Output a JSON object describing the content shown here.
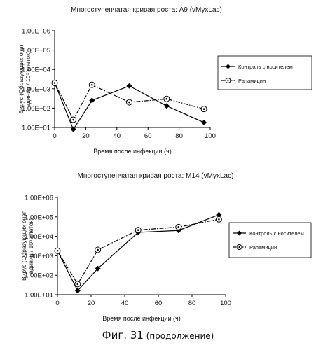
{
  "chart_data": [
    {
      "type": "line",
      "title": "Многоступенчатая кривая роста: A9 (vMyxLac)",
      "xlabel": "Время после инфекции (ч)",
      "ylabel_line1": "Вирус (Образующих очаг",
      "ylabel_line2": "единиц / 10⁵ клеток)",
      "y_scale": "log",
      "ylim": [
        10,
        1000000
      ],
      "xlim": [
        0,
        100
      ],
      "x_ticks": [
        0,
        20,
        40,
        60,
        80,
        100
      ],
      "y_ticks": [
        "1.00E+01",
        "1.00E+02",
        "1.00E+03",
        "1.00E+04",
        "1.00E+05",
        "1.00E+06"
      ],
      "legend_position": "right",
      "series": [
        {
          "name": "Контроль с носителем",
          "style": "solid",
          "marker": "diamond",
          "color": "#000000",
          "x": [
            0,
            12,
            24,
            48,
            72,
            96
          ],
          "y": [
            2000,
            8,
            250,
            1400,
            130,
            18
          ]
        },
        {
          "name": "Рапамицин",
          "style": "dash-dot",
          "marker": "open-circle",
          "color": "#000000",
          "x": [
            0,
            12,
            24,
            48,
            72,
            96
          ],
          "y": [
            2000,
            25,
            1600,
            200,
            300,
            90
          ]
        }
      ]
    },
    {
      "type": "line",
      "title": "Многоступенчатая кривая роста: M14 (vMyxLac)",
      "xlabel": "Время после инфекции (ч)",
      "ylabel_line1": "Вирус (Образующих очаг",
      "ylabel_line2": "единиц / 10⁵ клеток)",
      "y_scale": "log",
      "ylim": [
        10,
        1000000
      ],
      "xlim": [
        0,
        100
      ],
      "x_ticks": [
        0,
        20,
        40,
        60,
        80,
        100
      ],
      "y_ticks": [
        "1.00E+01",
        "1.00E+02",
        "1.00E+03",
        "1.00E+04",
        "1.00E+05",
        "1.00E+06"
      ],
      "legend_position": "right",
      "series": [
        {
          "name": "Контроль с носителем",
          "style": "solid",
          "marker": "diamond",
          "color": "#000000",
          "x": [
            0,
            12,
            24,
            48,
            72,
            96
          ],
          "y": [
            1800,
            16,
            220,
            16000,
            20000,
            130000
          ]
        },
        {
          "name": "Рапамицин",
          "style": "dash-dot",
          "marker": "open-circle",
          "color": "#000000",
          "x": [
            0,
            12,
            24,
            48,
            72,
            96
          ],
          "y": [
            1800,
            35,
            2000,
            21000,
            30000,
            75000
          ]
        }
      ]
    }
  ],
  "caption": {
    "main": "Фиг. 31",
    "sub": " (продолжение)"
  }
}
